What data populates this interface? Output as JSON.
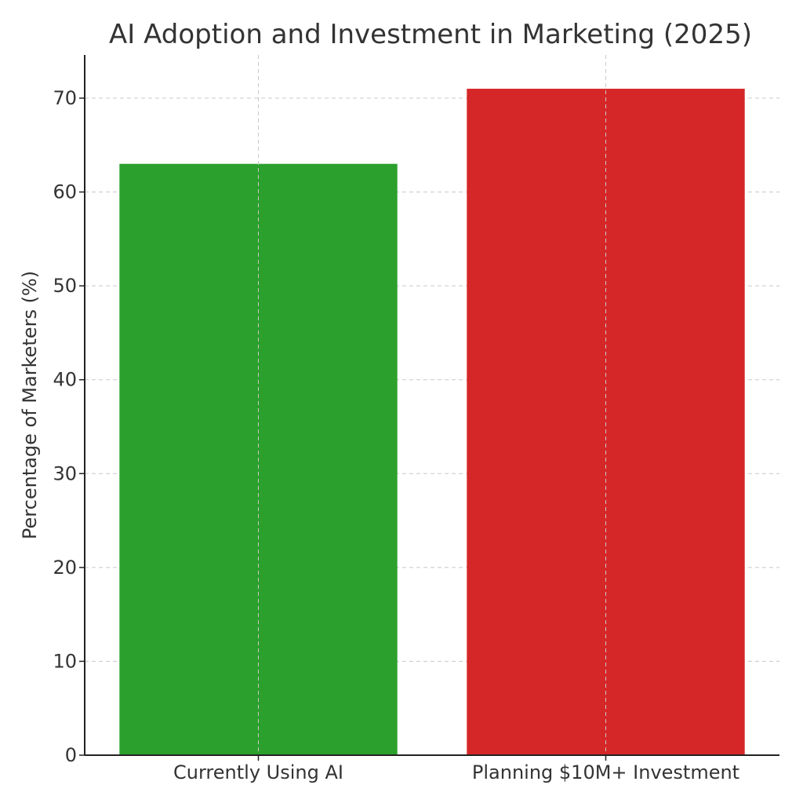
{
  "chart_data": {
    "type": "bar",
    "title": "AI Adoption and Investment in Marketing (2025)",
    "xlabel": "",
    "ylabel": "Percentage of Marketers (%)",
    "categories": [
      "Currently Using AI",
      "Planning $10M+ Investment"
    ],
    "values": [
      63,
      71
    ],
    "colors": [
      "#2ca02c",
      "#d62728"
    ],
    "ylim": [
      0,
      74.6
    ],
    "yticks": [
      "0",
      "10",
      "20",
      "30",
      "40",
      "50",
      "60",
      "70"
    ],
    "grid": true
  }
}
